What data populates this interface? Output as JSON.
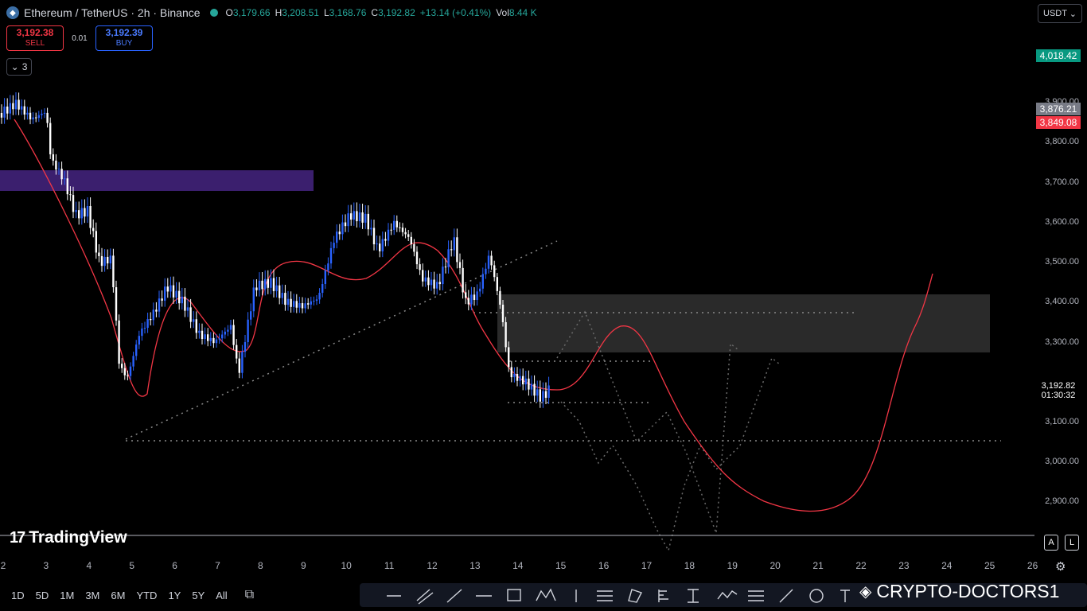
{
  "header": {
    "symbol_title": "Ethereum / TetherUS · 2h · Binance",
    "open_label": "O",
    "open": "3,179.66",
    "high_label": "H",
    "high": "3,208.51",
    "low_label": "L",
    "low": "3,168.76",
    "close_label": "C",
    "close": "3,192.82",
    "change": "+13.14 (+0.41%)",
    "vol_label": "Vol",
    "vol": "8.44 K"
  },
  "trade": {
    "sell_price": "3,192.38",
    "sell_label": "SELL",
    "spread": "0.01",
    "buy_price": "3,192.39",
    "buy_label": "BUY"
  },
  "indicator_toggle": {
    "count": "3"
  },
  "currency": {
    "selected": "USDT"
  },
  "price_axis": {
    "ticks": [
      "3,900.00",
      "3,800.00",
      "3,700.00",
      "3,600.00",
      "3,500.00",
      "3,400.00",
      "3,300.00",
      "3,100.00",
      "3,000.00",
      "2,900.00"
    ],
    "tags": {
      "top_green": "4,018.42",
      "gray": "3,876.21",
      "red": "3,849.08",
      "current": "3,192.82",
      "countdown": "01:30:32"
    }
  },
  "time_axis": {
    "ticks": [
      "2",
      "3",
      "4",
      "5",
      "6",
      "7",
      "8",
      "9",
      "10",
      "11",
      "12",
      "13",
      "14",
      "15",
      "16",
      "17",
      "18",
      "19",
      "20",
      "21",
      "22",
      "23",
      "24",
      "25",
      "26"
    ]
  },
  "ranges": [
    "1D",
    "5D",
    "1M",
    "3M",
    "6M",
    "YTD",
    "1Y",
    "5Y",
    "All"
  ],
  "brand": {
    "name": "TradingView"
  },
  "watermark": {
    "text": "CRYPTO-DOCTORS1"
  },
  "axis_buttons": {
    "auto": "A",
    "log": "L"
  },
  "colors": {
    "up": "#2962ff",
    "down": "#ffffff",
    "ma": "#f23645",
    "zone_purple": "#3b1f6e",
    "zone_gray": "#2a2a2a"
  }
}
